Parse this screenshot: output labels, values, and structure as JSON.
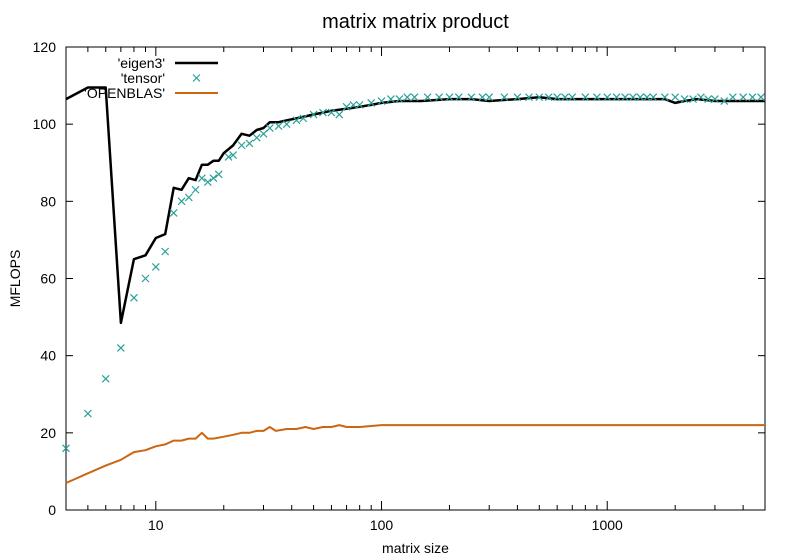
{
  "chart_data": {
    "type": "line",
    "title": "matrix matrix product",
    "xlabel": "matrix size",
    "ylabel": "MFLOPS",
    "xscale": "log",
    "xlim": [
      4,
      5000
    ],
    "ylim": [
      0,
      120
    ],
    "x_ticks": [
      10,
      100,
      1000
    ],
    "x_tick_labels": [
      "10",
      "100",
      "1000"
    ],
    "y_ticks": [
      0,
      20,
      40,
      60,
      80,
      100,
      120
    ],
    "y_tick_labels": [
      "0",
      "20",
      "40",
      "60",
      "80",
      "100",
      "120"
    ],
    "grid": false,
    "legend_position": "top-left",
    "series": [
      {
        "name": "'eigen3'",
        "style": "line",
        "color": "#000000",
        "points": [
          [
            4,
            106.5
          ],
          [
            5,
            109.5
          ],
          [
            6,
            109.5
          ],
          [
            7,
            48.5
          ],
          [
            8,
            65
          ],
          [
            9,
            66
          ],
          [
            10,
            70.5
          ],
          [
            11,
            71.5
          ],
          [
            12,
            83.5
          ],
          [
            13,
            83
          ],
          [
            14,
            86
          ],
          [
            15,
            85.5
          ],
          [
            16,
            89.5
          ],
          [
            17,
            89.5
          ],
          [
            18,
            90.5
          ],
          [
            19,
            90.5
          ],
          [
            20,
            92.5
          ],
          [
            22,
            94.5
          ],
          [
            24,
            97.5
          ],
          [
            26,
            97
          ],
          [
            28,
            98.5
          ],
          [
            30,
            99
          ],
          [
            32,
            100.5
          ],
          [
            35,
            100.5
          ],
          [
            38,
            101
          ],
          [
            42,
            101.5
          ],
          [
            46,
            102
          ],
          [
            50,
            102.5
          ],
          [
            55,
            103
          ],
          [
            60,
            103.5
          ],
          [
            70,
            104
          ],
          [
            80,
            104.5
          ],
          [
            90,
            105
          ],
          [
            100,
            105.5
          ],
          [
            120,
            106
          ],
          [
            150,
            106
          ],
          [
            200,
            106.5
          ],
          [
            250,
            106.5
          ],
          [
            300,
            106
          ],
          [
            400,
            106.5
          ],
          [
            500,
            107
          ],
          [
            600,
            106.5
          ],
          [
            800,
            106.5
          ],
          [
            1000,
            106.5
          ],
          [
            1200,
            106.5
          ],
          [
            1500,
            106.5
          ],
          [
            1800,
            106.5
          ],
          [
            2000,
            105.5
          ],
          [
            2200,
            106
          ],
          [
            2500,
            106.5
          ],
          [
            3000,
            106
          ],
          [
            3500,
            106
          ],
          [
            4000,
            106
          ],
          [
            5000,
            106
          ]
        ]
      },
      {
        "name": "'tensor'",
        "style": "markers",
        "marker": "x",
        "color": "#2aa198",
        "points": [
          [
            4,
            16
          ],
          [
            5,
            25
          ],
          [
            6,
            34
          ],
          [
            7,
            42
          ],
          [
            8,
            55
          ],
          [
            9,
            60
          ],
          [
            10,
            63
          ],
          [
            11,
            67
          ],
          [
            12,
            77
          ],
          [
            13,
            80
          ],
          [
            14,
            81
          ],
          [
            15,
            83
          ],
          [
            16,
            86
          ],
          [
            17,
            85
          ],
          [
            18,
            86
          ],
          [
            19,
            87
          ],
          [
            21,
            91.5
          ],
          [
            22,
            92
          ],
          [
            24,
            94.5
          ],
          [
            26,
            95
          ],
          [
            28,
            96.5
          ],
          [
            30,
            97.5
          ],
          [
            32,
            99
          ],
          [
            35,
            99.5
          ],
          [
            38,
            100
          ],
          [
            42,
            101
          ],
          [
            45,
            101.5
          ],
          [
            50,
            102.5
          ],
          [
            55,
            103
          ],
          [
            60,
            103
          ],
          [
            65,
            102.5
          ],
          [
            70,
            104.5
          ],
          [
            75,
            105
          ],
          [
            80,
            105
          ],
          [
            90,
            105.5
          ],
          [
            100,
            106
          ],
          [
            110,
            106.5
          ],
          [
            120,
            106.5
          ],
          [
            130,
            107
          ],
          [
            140,
            107
          ],
          [
            160,
            107
          ],
          [
            180,
            107
          ],
          [
            200,
            107
          ],
          [
            220,
            107
          ],
          [
            250,
            107
          ],
          [
            280,
            107
          ],
          [
            300,
            107
          ],
          [
            350,
            107
          ],
          [
            400,
            107
          ],
          [
            450,
            107
          ],
          [
            500,
            107
          ],
          [
            550,
            107
          ],
          [
            600,
            107
          ],
          [
            650,
            107
          ],
          [
            700,
            107
          ],
          [
            800,
            107
          ],
          [
            900,
            107
          ],
          [
            1000,
            107
          ],
          [
            1100,
            107
          ],
          [
            1200,
            107
          ],
          [
            1300,
            107
          ],
          [
            1400,
            107
          ],
          [
            1500,
            107
          ],
          [
            1600,
            107
          ],
          [
            1800,
            107
          ],
          [
            2000,
            107
          ],
          [
            2200,
            106.5
          ],
          [
            2400,
            106.5
          ],
          [
            2600,
            107
          ],
          [
            2800,
            106.5
          ],
          [
            3000,
            106.5
          ],
          [
            3300,
            106
          ],
          [
            3600,
            107
          ],
          [
            4000,
            107
          ],
          [
            4400,
            107
          ],
          [
            4800,
            107
          ]
        ]
      },
      {
        "name": "'OPENBLAS'",
        "style": "line",
        "color": "#cc6611",
        "points": [
          [
            4,
            7
          ],
          [
            5,
            9.5
          ],
          [
            6,
            11.5
          ],
          [
            7,
            13
          ],
          [
            8,
            15
          ],
          [
            9,
            15.5
          ],
          [
            10,
            16.5
          ],
          [
            11,
            17
          ],
          [
            12,
            18
          ],
          [
            13,
            18
          ],
          [
            14,
            18.5
          ],
          [
            15,
            18.5
          ],
          [
            16,
            20
          ],
          [
            17,
            18.5
          ],
          [
            18,
            18.5
          ],
          [
            20,
            19
          ],
          [
            22,
            19.5
          ],
          [
            24,
            20
          ],
          [
            26,
            20
          ],
          [
            28,
            20.5
          ],
          [
            30,
            20.5
          ],
          [
            32,
            21.5
          ],
          [
            34,
            20.5
          ],
          [
            38,
            21
          ],
          [
            42,
            21
          ],
          [
            46,
            21.5
          ],
          [
            50,
            21
          ],
          [
            55,
            21.5
          ],
          [
            60,
            21.5
          ],
          [
            65,
            22
          ],
          [
            70,
            21.5
          ],
          [
            80,
            21.5
          ],
          [
            100,
            22
          ],
          [
            120,
            22
          ],
          [
            150,
            22
          ],
          [
            200,
            22
          ],
          [
            250,
            22
          ],
          [
            300,
            22
          ],
          [
            400,
            22
          ],
          [
            500,
            22
          ],
          [
            600,
            22
          ],
          [
            800,
            22
          ],
          [
            1000,
            22
          ],
          [
            1500,
            22
          ],
          [
            2000,
            22
          ],
          [
            3000,
            22
          ],
          [
            4000,
            22
          ],
          [
            5000,
            22
          ]
        ]
      }
    ]
  }
}
